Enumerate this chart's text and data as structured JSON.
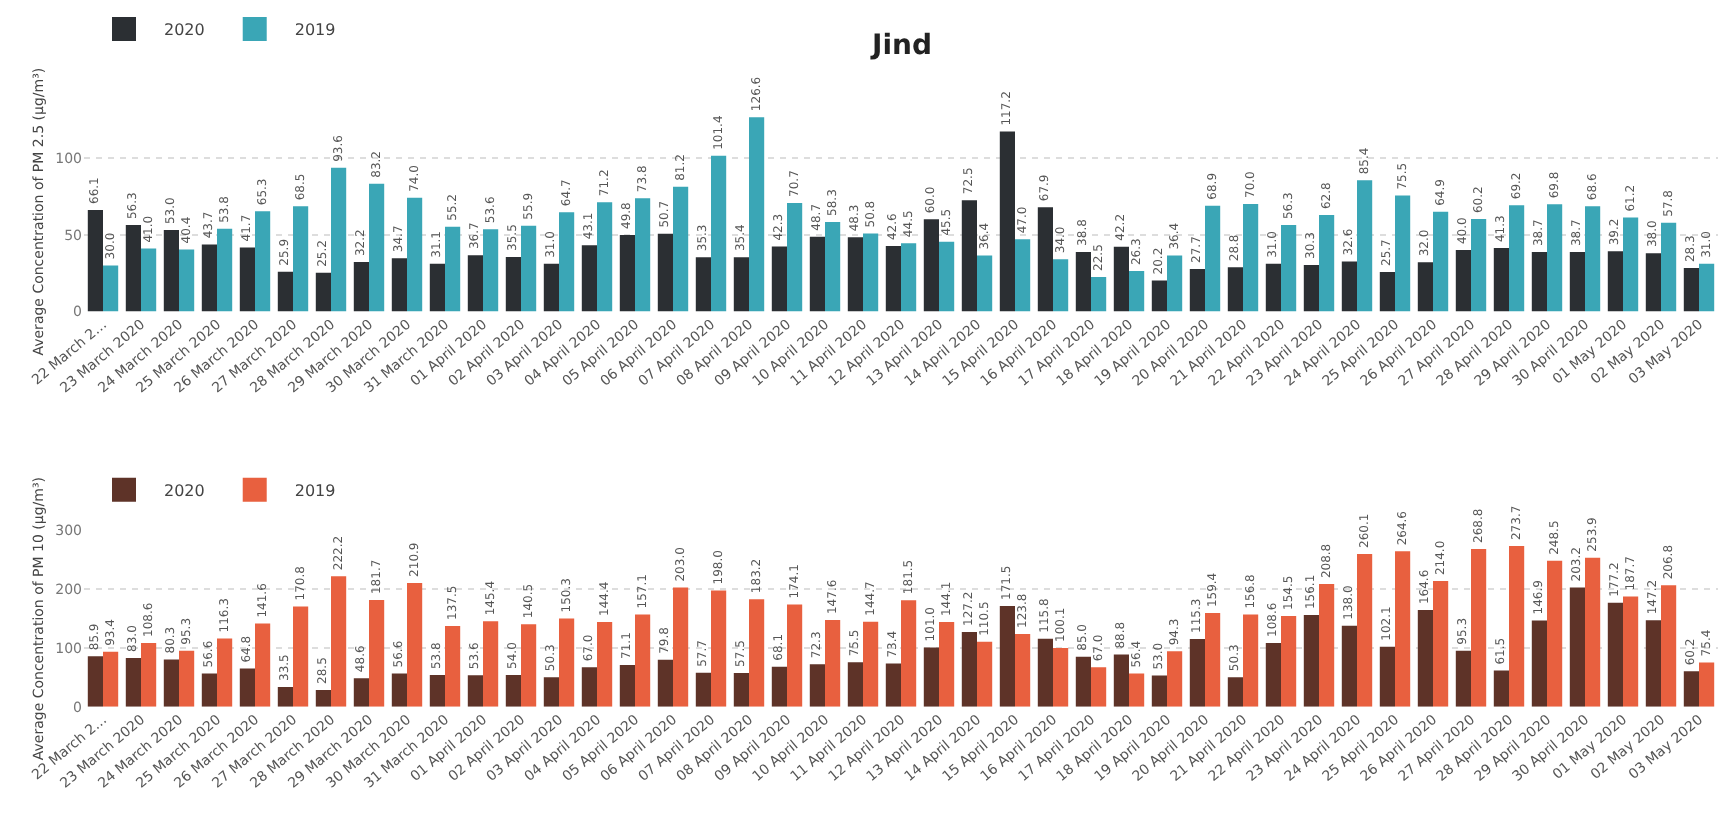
{
  "chart_data": [
    {
      "type": "bar",
      "title": "Jind",
      "ylabel": "Average Concentration of PM 2.5 (μg/m³)",
      "categories": [
        "22 March 2…",
        "23 March 2020",
        "24 March 2020",
        "25 March 2020",
        "26 March 2020",
        "27 March 2020",
        "28 March 2020",
        "29 March 2020",
        "30 March 2020",
        "31 March 2020",
        "01 April 2020",
        "02 April 2020",
        "03 April 2020",
        "04 April 2020",
        "05 April 2020",
        "06 April 2020",
        "07 April 2020",
        "08 April 2020",
        "09 April 2020",
        "10 April 2020",
        "11 April 2020",
        "12 April 2020",
        "13 April 2020",
        "14 April 2020",
        "15 April 2020",
        "16 April 2020",
        "17 April 2020",
        "18 April 2020",
        "19 April 2020",
        "20 April 2020",
        "21 April 2020",
        "22 April 2020",
        "23 April 2020",
        "24 April 2020",
        "25 April 2020",
        "26 April 2020",
        "27 April 2020",
        "28 April 2020",
        "29 April 2020",
        "30 April 2020",
        "01 May 2020",
        "02 May 2020",
        "03 May 2020"
      ],
      "series": [
        {
          "name": "2020",
          "color": "#2b2f33",
          "values": [
            66.1,
            56.3,
            53.0,
            43.7,
            41.7,
            25.9,
            25.2,
            32.2,
            34.7,
            31.1,
            36.7,
            35.5,
            31.0,
            43.1,
            49.8,
            50.7,
            35.3,
            35.4,
            42.3,
            48.7,
            48.3,
            42.6,
            60.0,
            72.5,
            117.2,
            67.9,
            38.8,
            42.2,
            20.2,
            27.7,
            28.8,
            31.0,
            30.3,
            32.6,
            25.7,
            32.0,
            40.0,
            41.3,
            38.7,
            38.7,
            39.2,
            38.0,
            28.3
          ],
          "value_labels": [
            "66.1",
            "56.3",
            "53.0",
            "43.7",
            "41.7",
            "25.9",
            "25.2",
            "32.2",
            "34.7",
            "31.1",
            "36.7",
            "35.5",
            "31.0",
            "43.1",
            "49.8",
            "50.7",
            "35.3",
            "35.4",
            "42.3",
            "48.7",
            "48.3",
            "42.6",
            "60.0",
            "72.5",
            "117.2",
            "67.9",
            "38.8",
            "42.2",
            "20.2",
            "27.7",
            "28.8",
            "31.0",
            "30.3",
            "32.6",
            "25.7",
            "32.0",
            "40.0",
            "41.3",
            "38.7",
            "38.7",
            "39.2",
            "38.0",
            "28.3"
          ]
        },
        {
          "name": "2019",
          "color": "#3aa6b6",
          "values": [
            30.0,
            41.0,
            40.4,
            53.8,
            65.3,
            68.5,
            93.6,
            83.2,
            74.0,
            55.2,
            53.6,
            55.9,
            64.7,
            71.2,
            73.8,
            81.2,
            101.4,
            126.6,
            70.7,
            58.3,
            50.8,
            44.5,
            45.5,
            36.4,
            47.0,
            34.0,
            22.5,
            26.3,
            36.4,
            68.9,
            70.0,
            56.3,
            62.8,
            85.4,
            75.5,
            64.9,
            60.2,
            69.2,
            69.8,
            68.6,
            61.2,
            57.8,
            31.0
          ],
          "value_labels": [
            "30.0",
            "41.0",
            "40.4",
            "53.8",
            "65.3",
            "68.5",
            "93.6",
            "83.2",
            "74.0",
            "55.2",
            "53.6",
            "55.9",
            "64.7",
            "71.2",
            "73.8",
            "81.2",
            "101.4",
            "126.6",
            "70.7",
            "58.3",
            "50.8",
            "44.5",
            "45.5",
            "36.4",
            "47.0",
            "34.0",
            "22.5",
            "26.3",
            "36.4",
            "68.9",
            "70.0",
            "56.3",
            "62.8",
            "85.4",
            "75.5",
            "64.9",
            "60.2",
            "69.2",
            "69.8",
            "68.6",
            "61.2",
            "57.8",
            "31.0"
          ]
        }
      ],
      "ylim": [
        0,
        130
      ],
      "yticks": [
        0,
        50,
        100
      ],
      "grid": "y",
      "legend": "top left"
    },
    {
      "type": "bar",
      "ylabel": "Average Concentration of PM 10 (μg/m³)",
      "categories": [
        "22 March 2…",
        "23 March 2020",
        "24 March 2020",
        "25 March 2020",
        "26 March 2020",
        "27 March 2020",
        "28 March 2020",
        "29 March 2020",
        "30 March 2020",
        "31 March 2020",
        "01 April 2020",
        "02 April 2020",
        "03 April 2020",
        "04 April 2020",
        "05 April 2020",
        "06 April 2020",
        "07 April 2020",
        "08 April 2020",
        "09 April 2020",
        "10 April 2020",
        "11 April 2020",
        "12 April 2020",
        "13 April 2020",
        "14 April 2020",
        "15 April 2020",
        "16 April 2020",
        "17 April 2020",
        "18 April 2020",
        "19 April 2020",
        "20 April 2020",
        "21 April 2020",
        "22 April 2020",
        "23 April 2020",
        "24 April 2020",
        "25 April 2020",
        "26 April 2020",
        "27 April 2020",
        "28 April 2020",
        "29 April 2020",
        "30 April 2020",
        "01 May 2020",
        "02 May 2020",
        "03 May 2020"
      ],
      "series": [
        {
          "name": "2020",
          "color": "#5e3328",
          "values": [
            85.9,
            83.0,
            80.3,
            56.6,
            64.8,
            33.5,
            28.5,
            48.6,
            56.6,
            53.8,
            53.6,
            54.0,
            50.3,
            67.0,
            71.1,
            79.8,
            57.7,
            57.5,
            68.1,
            72.3,
            75.5,
            73.4,
            101.0,
            127.2,
            171.5,
            115.8,
            85.0,
            88.8,
            53.0,
            115.3,
            50.3,
            108.6,
            156.1,
            138.0,
            102.1,
            164.6,
            95.3,
            61.5,
            146.9,
            203.2,
            177.2,
            147.2,
            60.2
          ],
          "value_labels": [
            "85.9",
            "83.0",
            "80.3",
            "56.6",
            "64.8",
            "33.5",
            "28.5",
            "48.6",
            "56.6",
            "53.8",
            "53.6",
            "54.0",
            "50.3",
            "67.0",
            "71.1",
            "79.8",
            "57.7",
            "57.5",
            "68.1",
            "72.3",
            "75.5",
            "73.4",
            "101.0",
            "127.2",
            "171.5",
            "115.8",
            "85.0",
            "88.8",
            "53.0",
            "115.3",
            "50.3",
            "108.6",
            "156.1",
            "138.0",
            "102.1",
            "164.6",
            "95.3",
            "61.5",
            "146.9",
            "203.2",
            "177.2",
            "147.2",
            "60.2"
          ]
        },
        {
          "name": "2019",
          "color": "#e8603f",
          "values": [
            93.4,
            108.6,
            95.3,
            116.3,
            141.6,
            170.8,
            222.2,
            181.7,
            210.9,
            137.5,
            145.4,
            140.5,
            150.3,
            144.4,
            157.1,
            203.0,
            198.0,
            183.2,
            174.1,
            147.6,
            144.7,
            181.5,
            144.1,
            110.5,
            123.8,
            100.1,
            67.0,
            56.4,
            94.3,
            159.4,
            156.8,
            154.5,
            208.8,
            260.1,
            264.6,
            214.0,
            268.8,
            273.7,
            248.5,
            253.9,
            187.7,
            206.8,
            75.4
          ],
          "value_labels": [
            "93.4",
            "108.6",
            "95.3",
            "116.3",
            "141.6",
            "170.8",
            "222.2",
            "181.7",
            "210.9",
            "137.5",
            "145.4",
            "140.5",
            "150.3",
            "144.4",
            "157.1",
            "203.0",
            "198.0",
            "183.2",
            "174.1",
            "147.6",
            "144.7",
            "181.5",
            "144.1",
            "110.5",
            "123.8",
            "100.1",
            "67.0",
            "56.4",
            "94.3",
            "159.4",
            "156.8",
            "154.5",
            "208.8",
            "260.1",
            "264.6",
            "214.0",
            "268.8",
            "273.7",
            "248.5",
            "253.9",
            "187.7",
            "206.8",
            "75.4"
          ]
        }
      ],
      "ylim": [
        0,
        300
      ],
      "yticks": [
        0,
        100,
        200,
        300
      ],
      "grid": "y",
      "legend": "top left"
    }
  ]
}
